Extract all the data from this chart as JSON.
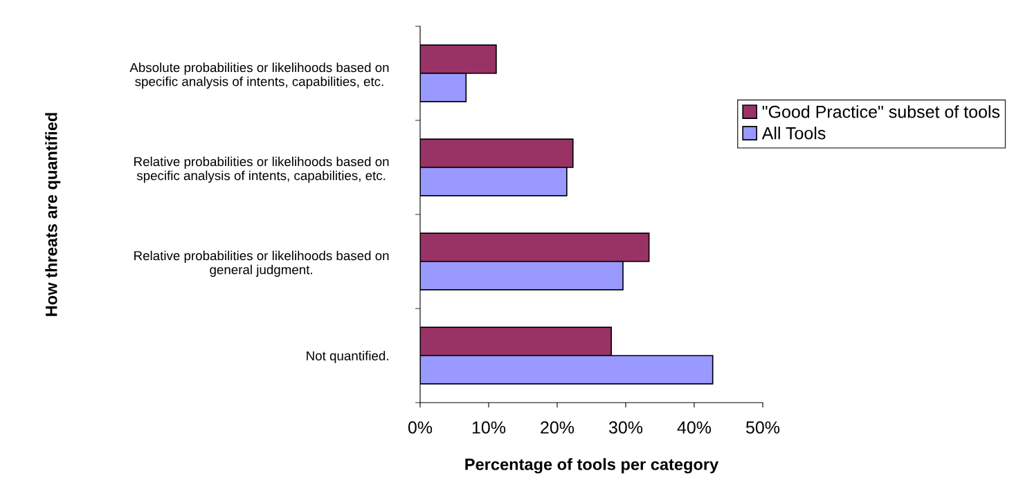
{
  "chart_data": {
    "type": "bar",
    "orientation": "horizontal",
    "xlabel": "Percentage of tools per category",
    "ylabel": "How threats are quantified",
    "categories": [
      "Absolute probabilities or likelihoods based on\nspecific analysis of intents, capabilities, etc.",
      "Relative probabilities or likelihoods based on\nspecific analysis of intents, capabilities, etc.",
      "Relative probabilities or likelihoods based on\ngeneral judgment.",
      "Not quantified."
    ],
    "series": [
      {
        "name": "\"Good Practice\" subset of tools",
        "color": "#993366",
        "values": [
          11.1,
          22.3,
          33.4,
          27.9
        ]
      },
      {
        "name": "All Tools",
        "color": "#9999ff",
        "values": [
          6.7,
          21.4,
          29.6,
          42.7
        ]
      }
    ],
    "xlim": [
      0,
      50
    ],
    "xticks": [
      {
        "value": 0,
        "label": "0%"
      },
      {
        "value": 10,
        "label": "10%"
      },
      {
        "value": 20,
        "label": "20%"
      },
      {
        "value": 30,
        "label": "30%"
      },
      {
        "value": 40,
        "label": "40%"
      },
      {
        "value": 50,
        "label": "50%"
      }
    ],
    "grid": false,
    "legend": "top right"
  }
}
